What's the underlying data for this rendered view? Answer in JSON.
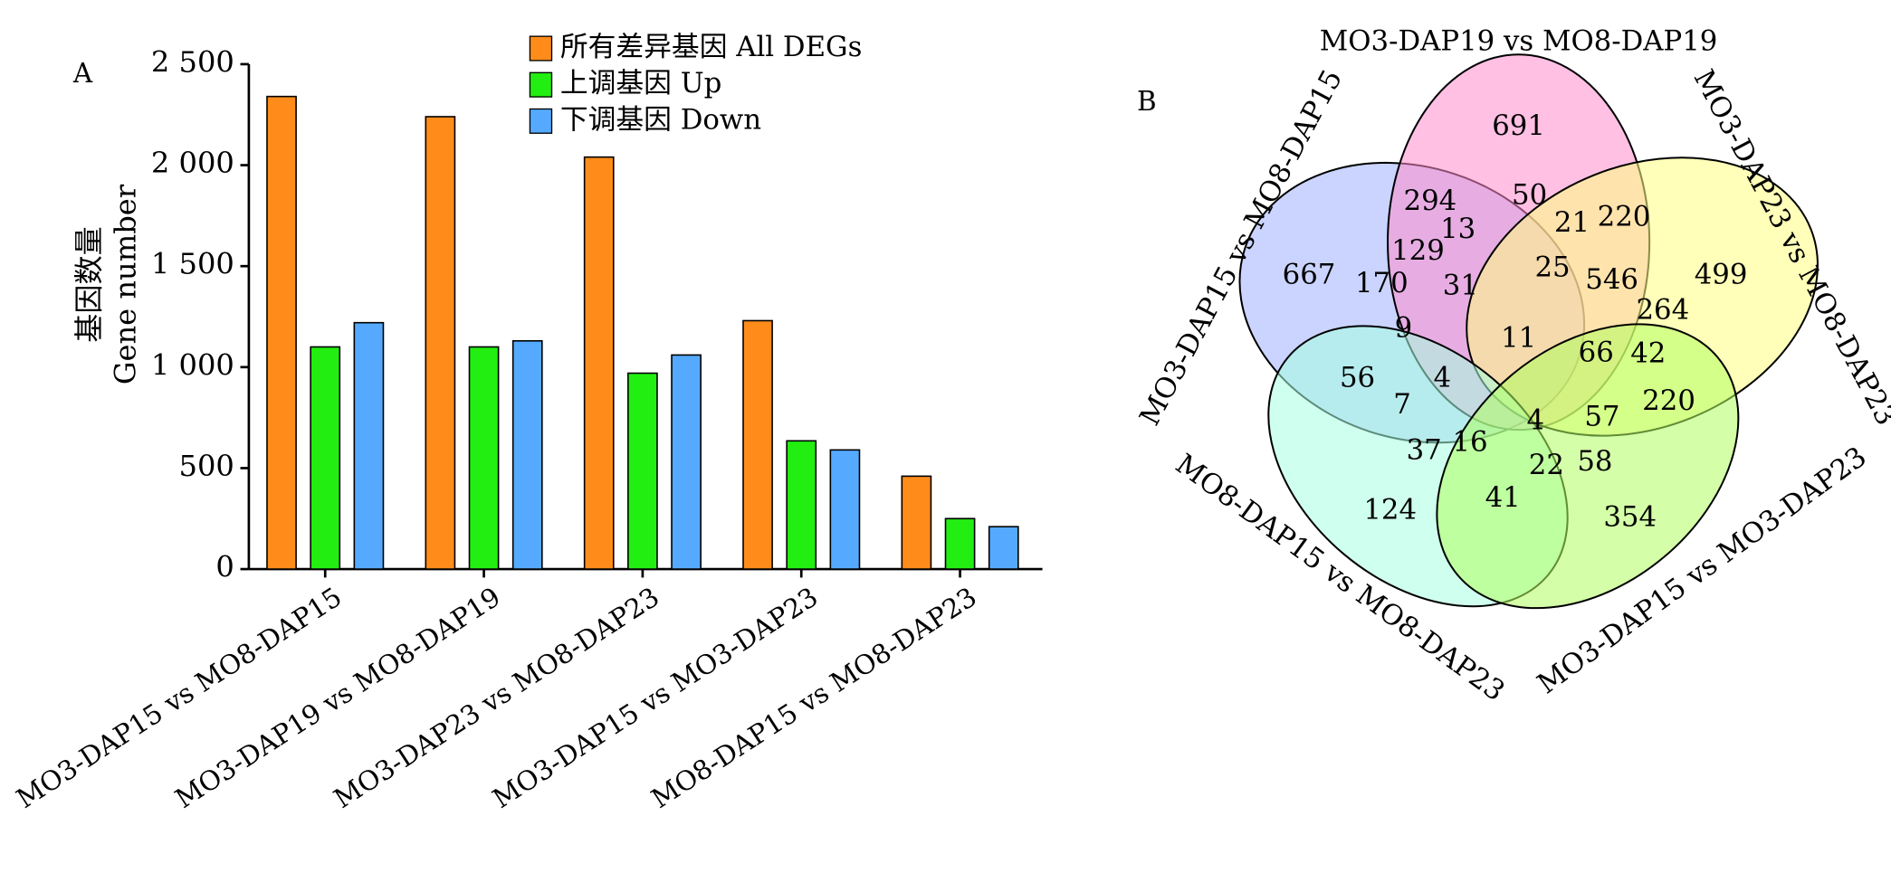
{
  "chart_data": [
    {
      "type": "bar",
      "panel": "A",
      "ylabel": [
        "基因数量",
        "Gene number"
      ],
      "categories": [
        "MO3-DAP15 vs MO8-DAP15",
        "MO3-DAP19 vs MO8-DAP19",
        "MO3-DAP23 vs MO8-DAP23",
        "MO3-DAP15 vs MO3-DAP23",
        "MO8-DAP15 vs MO8-DAP23"
      ],
      "series": [
        {
          "name": "所有差异基因 All DEGs",
          "color": "#ff8c1a",
          "values": [
            2340,
            2240,
            2040,
            1230,
            460
          ]
        },
        {
          "name": "上调基因 Up",
          "color": "#22ee11",
          "values": [
            1100,
            1100,
            970,
            635,
            250
          ]
        },
        {
          "name": "下调基因 Down",
          "color": "#55aaff",
          "values": [
            1220,
            1130,
            1060,
            590,
            210
          ]
        }
      ],
      "ylim": [
        0,
        2500
      ],
      "yticks": [
        0,
        500,
        {
          "value": 1000,
          "label": "1 000"
        },
        {
          "value": 1500,
          "label": "1 500"
        },
        {
          "value": 2000,
          "label": "2 000"
        },
        {
          "value": 2500,
          "label": "2 500"
        }
      ]
    },
    {
      "type": "venn",
      "panel": "B",
      "sets": [
        "MO3-DAP19 vs MO8-DAP19",
        "MO3-DAP15 vs MO8-DAP15",
        "MO3-DAP23 vs MO8-DAP23",
        "MO8-DAP15 vs MO8-DAP23",
        "MO3-DAP15 vs MO3-DAP23"
      ],
      "colors": [
        "#ff8ccc",
        "#9fb0ff",
        "#ffff80",
        "#a8ffe0",
        "#b0ff60"
      ],
      "regions": [
        691,
        294,
        50,
        13,
        21,
        220,
        667,
        129,
        170,
        31,
        25,
        546,
        499,
        264,
        9,
        11,
        66,
        42,
        56,
        4,
        7,
        4,
        57,
        220,
        37,
        16,
        22,
        58,
        124,
        41,
        354
      ]
    }
  ]
}
